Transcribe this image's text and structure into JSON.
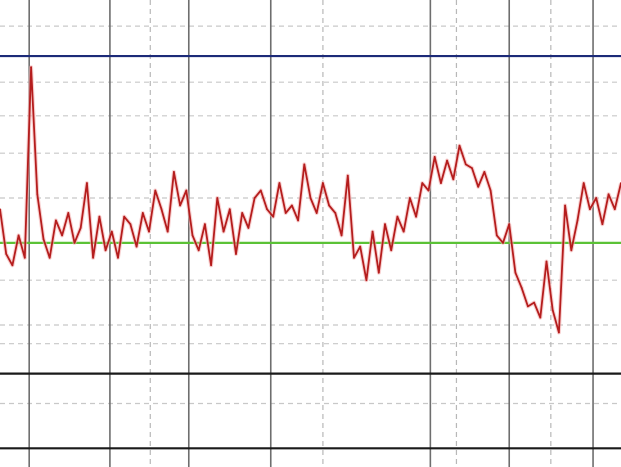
{
  "chart_data": {
    "type": "line",
    "title": "",
    "xlabel": "",
    "ylabel": "",
    "xlim": [
      0,
      100
    ],
    "ylim": [
      -10,
      115
    ],
    "grid": true,
    "legend": "none",
    "series": [
      {
        "color": "#b51d1d",
        "x": [
          0,
          1,
          2,
          3,
          4,
          5,
          6,
          7,
          8,
          9,
          10,
          11,
          12,
          13,
          14,
          15,
          16,
          17,
          18,
          19,
          20,
          21,
          22,
          23,
          24,
          25,
          26,
          27,
          28,
          29,
          30,
          31,
          32,
          33,
          34,
          35,
          36,
          37,
          38,
          39,
          40,
          41,
          42,
          43,
          44,
          45,
          46,
          47,
          48,
          49,
          50,
          51,
          52,
          53,
          54,
          55,
          56,
          57,
          58,
          59,
          60,
          61,
          62,
          63,
          64,
          65,
          66,
          67,
          68,
          69,
          70,
          71,
          72,
          73,
          74,
          75,
          76,
          77,
          78,
          79,
          80,
          81,
          82,
          83,
          84,
          85,
          86,
          87,
          88,
          89,
          90,
          91,
          92,
          93,
          94,
          95,
          96,
          97,
          98,
          99,
          100
        ],
        "y": [
          59,
          47,
          44,
          52,
          46,
          97,
          63,
          51,
          46,
          56,
          52,
          58,
          50,
          54,
          66,
          46,
          57,
          48,
          53,
          46,
          57,
          55,
          49,
          58,
          53,
          64,
          59,
          53,
          69,
          60,
          64,
          52,
          48,
          55,
          44,
          62,
          53,
          59,
          47,
          58,
          54,
          62,
          64,
          59,
          57,
          66,
          58,
          60,
          56,
          71,
          62,
          58,
          66,
          60,
          58,
          52,
          68,
          46,
          49,
          40,
          53,
          42,
          55,
          48,
          57,
          53,
          62,
          57,
          66,
          64,
          73,
          66,
          72,
          67,
          76,
          71,
          70,
          65,
          69,
          64,
          52,
          50,
          55,
          42,
          38,
          33,
          34,
          30,
          45,
          32,
          26,
          60,
          48,
          56,
          66,
          59,
          62,
          55,
          63,
          59,
          66
        ],
        "note_points": 101
      }
    ],
    "reference_lines": [
      {
        "y": 100,
        "color": "#1c2a78"
      },
      {
        "y": 50,
        "color": "#5bc236"
      },
      {
        "y": 15,
        "color": "#1a1a1a"
      },
      {
        "y": -5,
        "color": "#1a1a1a"
      }
    ],
    "vertical_gridlines_solid_x": [
      4.7,
      17.7,
      30.4,
      43.6,
      69.3,
      82.0,
      95.5
    ],
    "vertical_gridlines_dashed_x": [
      24.2,
      52.0,
      73.5,
      88.7
    ],
    "horizontal_gridlines_dashed_y": [
      108,
      93,
      84,
      74,
      62,
      40,
      28,
      23,
      7
    ]
  }
}
